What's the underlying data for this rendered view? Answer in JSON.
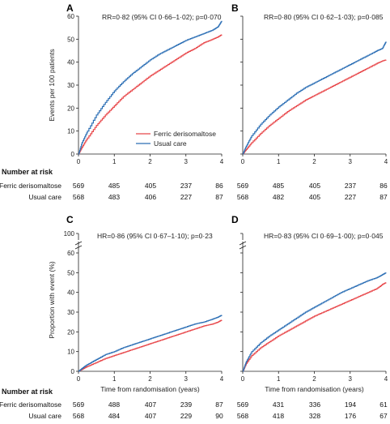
{
  "chart_data": [
    {
      "panel": "A",
      "type": "line",
      "annotation": "RR=0·82 (95% CI 0·66–1·02); p=0·070",
      "ylabel": "Events per 100 patients",
      "xlabel": "",
      "xlim": [
        0,
        4
      ],
      "ylim": [
        0,
        60
      ],
      "xticks": [
        "0",
        "1",
        "2",
        "3",
        "4"
      ],
      "yticks": [
        "0",
        "10",
        "20",
        "30",
        "40",
        "50",
        "60"
      ],
      "legend": {
        "position": "middle-right",
        "entries": [
          "Ferric derisomaltose",
          "Usual care"
        ]
      },
      "series": [
        {
          "name": "Ferric derisomaltose",
          "color": "#e8474a",
          "points": [
            [
              0,
              0
            ],
            [
              0.1,
              3
            ],
            [
              0.25,
              7
            ],
            [
              0.5,
              12.5
            ],
            [
              0.75,
              17
            ],
            [
              1,
              21
            ],
            [
              1.25,
              25
            ],
            [
              1.5,
              28
            ],
            [
              1.75,
              31
            ],
            [
              2,
              34
            ],
            [
              2.25,
              36.5
            ],
            [
              2.5,
              39
            ],
            [
              2.75,
              41.5
            ],
            [
              3,
              44
            ],
            [
              3.25,
              46
            ],
            [
              3.5,
              48.5
            ],
            [
              3.75,
              50
            ],
            [
              3.9,
              51
            ],
            [
              4,
              52
            ]
          ]
        },
        {
          "name": "Usual care",
          "color": "#2c6fb5",
          "points": [
            [
              0,
              0
            ],
            [
              0.1,
              5
            ],
            [
              0.25,
              10
            ],
            [
              0.5,
              17
            ],
            [
              0.75,
              22.5
            ],
            [
              1,
              27.5
            ],
            [
              1.25,
              31.5
            ],
            [
              1.5,
              35
            ],
            [
              1.75,
              38
            ],
            [
              2,
              41
            ],
            [
              2.25,
              43.5
            ],
            [
              2.5,
              45.5
            ],
            [
              2.75,
              47.5
            ],
            [
              3,
              49.5
            ],
            [
              3.25,
              51
            ],
            [
              3.5,
              52.5
            ],
            [
              3.75,
              54
            ],
            [
              3.9,
              55.5
            ],
            [
              4,
              58
            ]
          ]
        }
      ]
    },
    {
      "panel": "B",
      "type": "line",
      "annotation": "RR=0·80 (95% CI 0·62–1·03); p=0·085",
      "xlim": [
        0,
        4
      ],
      "ylim": [
        0,
        60
      ],
      "xticks": [
        "0",
        "1",
        "2",
        "3",
        "4"
      ],
      "series": [
        {
          "name": "Ferric derisomaltose",
          "color": "#e8474a",
          "points": [
            [
              0,
              0
            ],
            [
              0.1,
              2
            ],
            [
              0.25,
              5
            ],
            [
              0.5,
              9
            ],
            [
              0.75,
              12.5
            ],
            [
              1,
              15.5
            ],
            [
              1.25,
              18.5
            ],
            [
              1.5,
              21
            ],
            [
              1.75,
              23.5
            ],
            [
              2,
              25.5
            ],
            [
              2.25,
              27.5
            ],
            [
              2.5,
              29.5
            ],
            [
              2.75,
              31.5
            ],
            [
              3,
              33.5
            ],
            [
              3.25,
              35.5
            ],
            [
              3.5,
              37.5
            ],
            [
              3.75,
              39.5
            ],
            [
              3.9,
              40.5
            ],
            [
              4,
              41
            ]
          ]
        },
        {
          "name": "Usual care",
          "color": "#2c6fb5",
          "points": [
            [
              0,
              0
            ],
            [
              0.1,
              3.5
            ],
            [
              0.25,
              8
            ],
            [
              0.5,
              13
            ],
            [
              0.75,
              17
            ],
            [
              1,
              20.5
            ],
            [
              1.25,
              23.5
            ],
            [
              1.5,
              26.5
            ],
            [
              1.75,
              29
            ],
            [
              2,
              31
            ],
            [
              2.25,
              33
            ],
            [
              2.5,
              35
            ],
            [
              2.75,
              37
            ],
            [
              3,
              39
            ],
            [
              3.25,
              41
            ],
            [
              3.5,
              43
            ],
            [
              3.75,
              45
            ],
            [
              3.9,
              46
            ],
            [
              4,
              49
            ]
          ]
        }
      ]
    },
    {
      "panel": "C",
      "type": "line",
      "annotation": "HR=0·86 (95% CI 0·67–1·10); p=0·23",
      "ylabel": "Proportion with event (%)",
      "xlabel": "Time from randomisation (years)",
      "xlim": [
        0,
        4
      ],
      "ylim": [
        0,
        100
      ],
      "axis_break": [
        65,
        95
      ],
      "xticks": [
        "0",
        "1",
        "2",
        "3",
        "4"
      ],
      "yticks": [
        "0",
        "10",
        "20",
        "30",
        "40",
        "50",
        "60",
        "100"
      ],
      "series": [
        {
          "name": "Ferric derisomaltose",
          "color": "#e8474a",
          "points": [
            [
              0,
              0
            ],
            [
              0.1,
              1
            ],
            [
              0.25,
              2.5
            ],
            [
              0.5,
              4.5
            ],
            [
              0.75,
              6.5
            ],
            [
              1,
              8
            ],
            [
              1.25,
              9.5
            ],
            [
              1.5,
              11
            ],
            [
              1.75,
              12.5
            ],
            [
              2,
              14
            ],
            [
              2.25,
              15.5
            ],
            [
              2.5,
              17
            ],
            [
              2.75,
              18.5
            ],
            [
              3,
              20
            ],
            [
              3.25,
              21.5
            ],
            [
              3.5,
              23
            ],
            [
              3.75,
              24
            ],
            [
              3.9,
              25
            ],
            [
              4,
              26
            ]
          ]
        },
        {
          "name": "Usual care",
          "color": "#2c6fb5",
          "points": [
            [
              0,
              0
            ],
            [
              0.1,
              1.5
            ],
            [
              0.25,
              3.5
            ],
            [
              0.5,
              6
            ],
            [
              0.75,
              8.5
            ],
            [
              1,
              10
            ],
            [
              1.25,
              12
            ],
            [
              1.5,
              13.5
            ],
            [
              1.75,
              15
            ],
            [
              2,
              16.5
            ],
            [
              2.25,
              18
            ],
            [
              2.5,
              19.5
            ],
            [
              2.75,
              21
            ],
            [
              3,
              22.5
            ],
            [
              3.25,
              24
            ],
            [
              3.5,
              25
            ],
            [
              3.75,
              26.5
            ],
            [
              3.9,
              27.5
            ],
            [
              4,
              28.5
            ]
          ]
        }
      ]
    },
    {
      "panel": "D",
      "type": "line",
      "annotation": "HR=0·83 (95% CI 0·69–1·00); p=0·045",
      "xlabel": "Time from randomisation (years)",
      "xlim": [
        0,
        4
      ],
      "ylim": [
        0,
        100
      ],
      "axis_break": [
        65,
        95
      ],
      "xticks": [
        "0",
        "1",
        "2",
        "3",
        "4"
      ],
      "series": [
        {
          "name": "Ferric derisomaltose",
          "color": "#e8474a",
          "points": [
            [
              0,
              0
            ],
            [
              0.1,
              4
            ],
            [
              0.25,
              8
            ],
            [
              0.5,
              12
            ],
            [
              0.75,
              15
            ],
            [
              1,
              18
            ],
            [
              1.25,
              20.5
            ],
            [
              1.5,
              23
            ],
            [
              1.75,
              25.5
            ],
            [
              2,
              28
            ],
            [
              2.25,
              30
            ],
            [
              2.5,
              32
            ],
            [
              2.75,
              34
            ],
            [
              3,
              36
            ],
            [
              3.25,
              38
            ],
            [
              3.5,
              40
            ],
            [
              3.75,
              42
            ],
            [
              3.9,
              44
            ],
            [
              4,
              45
            ]
          ]
        },
        {
          "name": "Usual care",
          "color": "#2c6fb5",
          "points": [
            [
              0,
              0
            ],
            [
              0.1,
              5
            ],
            [
              0.25,
              10
            ],
            [
              0.5,
              14.5
            ],
            [
              0.75,
              18
            ],
            [
              1,
              21
            ],
            [
              1.25,
              24
            ],
            [
              1.5,
              27
            ],
            [
              1.75,
              30
            ],
            [
              2,
              32.5
            ],
            [
              2.25,
              35
            ],
            [
              2.5,
              37.5
            ],
            [
              2.75,
              40
            ],
            [
              3,
              42
            ],
            [
              3.25,
              44
            ],
            [
              3.5,
              46
            ],
            [
              3.75,
              47.5
            ],
            [
              3.9,
              49
            ],
            [
              4,
              50
            ]
          ]
        }
      ]
    }
  ],
  "risk_tables": [
    {
      "header": "Number at risk",
      "rows": [
        {
          "label": "Ferric derisomaltose",
          "left": [
            "569",
            "485",
            "405",
            "237",
            "86"
          ],
          "right": [
            "569",
            "485",
            "405",
            "237",
            "86"
          ]
        },
        {
          "label": "Usual care",
          "left": [
            "568",
            "483",
            "406",
            "227",
            "87"
          ],
          "right": [
            "568",
            "482",
            "405",
            "227",
            "87"
          ]
        }
      ]
    },
    {
      "header": "Number at risk",
      "rows": [
        {
          "label": "Ferric derisomaltose",
          "left": [
            "569",
            "488",
            "407",
            "239",
            "87"
          ],
          "right": [
            "569",
            "431",
            "336",
            "194",
            "61"
          ]
        },
        {
          "label": "Usual care",
          "left": [
            "568",
            "484",
            "407",
            "229",
            "90"
          ],
          "right": [
            "568",
            "418",
            "328",
            "176",
            "67"
          ]
        }
      ]
    }
  ]
}
